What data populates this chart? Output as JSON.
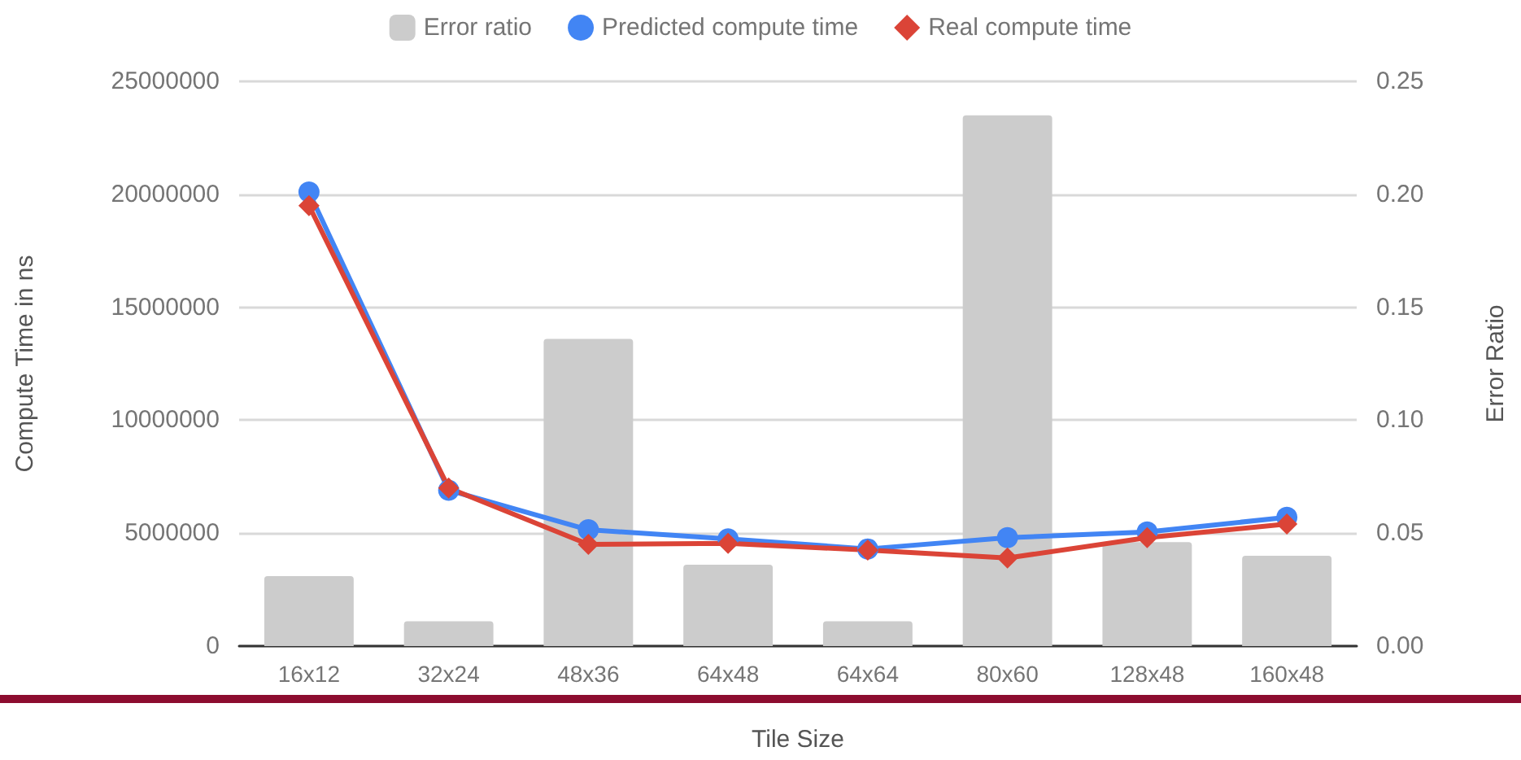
{
  "chart_data": {
    "type": "line",
    "xlabel": "Tile Size",
    "ylabel": "Compute Time in ns",
    "y2label": "Error Ratio",
    "categories": [
      "16x12",
      "32x24",
      "48x36",
      "64x48",
      "64x64",
      "80x60",
      "128x48",
      "160x48"
    ],
    "series": [
      {
        "name": "Error ratio",
        "type": "bar",
        "axis": "y2",
        "color": "#cccccc",
        "values": [
          0.031,
          0.011,
          0.136,
          0.036,
          0.011,
          0.235,
          0.046,
          0.04
        ]
      },
      {
        "name": "Predicted compute time",
        "color": "#4285f4",
        "marker": "circle",
        "values": [
          20100000,
          6900000,
          5150000,
          4750000,
          4300000,
          4800000,
          5050000,
          5700000
        ]
      },
      {
        "name": "Real compute time",
        "color": "#db4437",
        "marker": "diamond",
        "values": [
          19500000,
          7000000,
          4500000,
          4550000,
          4250000,
          3900000,
          4800000,
          5400000
        ]
      }
    ],
    "ylim": [
      0,
      25000000
    ],
    "yticks": [
      0,
      5000000,
      10000000,
      15000000,
      20000000,
      25000000
    ],
    "y2lim": [
      0,
      0.25
    ],
    "y2ticks": [
      {
        "value": 0,
        "label": "0.00"
      },
      {
        "value": 0.05,
        "label": "0.05"
      },
      {
        "value": 0.1,
        "label": "0.10"
      },
      {
        "value": 0.15,
        "label": "0.15"
      },
      {
        "value": 0.2,
        "label": "0.20"
      },
      {
        "value": 0.25,
        "label": "0.25"
      }
    ],
    "grid": "y",
    "legend": "top",
    "line_style": "solid"
  }
}
